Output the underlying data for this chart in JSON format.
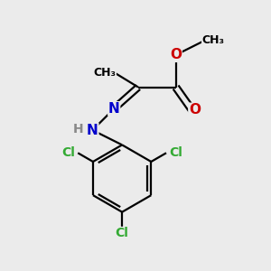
{
  "background_color": "#ebebeb",
  "bond_color": "#000000",
  "nitrogen_color": "#0000cc",
  "oxygen_color": "#cc0000",
  "chlorine_color": "#33aa33",
  "figsize": [
    3.0,
    3.0
  ],
  "dpi": 100,
  "xlim": [
    0,
    10
  ],
  "ylim": [
    0,
    10
  ]
}
